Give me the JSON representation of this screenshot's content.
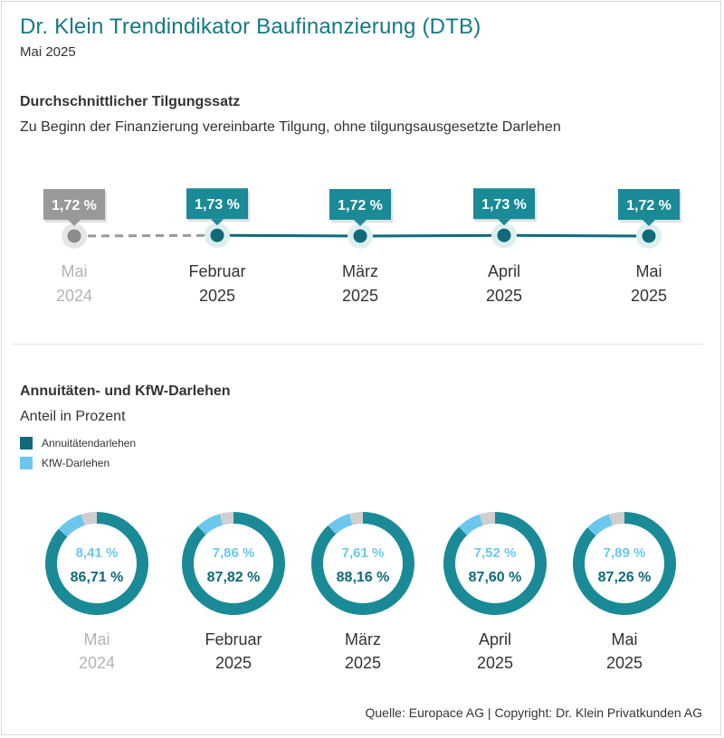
{
  "header": {
    "title": "Dr. Klein Trendindikator Baufinanzierung (DTB)",
    "date": "Mai 2025"
  },
  "colors": {
    "teal_dark": "#0f6b78",
    "teal": "#1a8a96",
    "light_blue": "#6cc7ee",
    "gray": "#999999",
    "gray_segment": "#cfcfcf",
    "halo": "#dcefef"
  },
  "section1": {
    "title": "Durchschnittlicher Tilgungssatz",
    "subtitle": "Zu Beginn der Finanzierung vereinbarte Tilgung, ohne tilgungsausgesetzte Darlehen"
  },
  "section2": {
    "title": "Annuitäten- und KfW-Darlehen",
    "subtitle": "Anteil in Prozent",
    "legend": [
      {
        "label": "Annuitätendarlehen",
        "color": "#0f6b78"
      },
      {
        "label": "KfW-Darlehen",
        "color": "#6cc7ee"
      }
    ]
  },
  "chart_data": [
    {
      "type": "line",
      "title": "Durchschnittlicher Tilgungssatz",
      "unit": "%",
      "categories": [
        {
          "month": "Mai",
          "year": "2024",
          "muted": true
        },
        {
          "month": "Februar",
          "year": "2025",
          "muted": false
        },
        {
          "month": "März",
          "year": "2025",
          "muted": false
        },
        {
          "month": "April",
          "year": "2025",
          "muted": false
        },
        {
          "month": "Mai",
          "year": "2025",
          "muted": false
        }
      ],
      "values": [
        1.72,
        1.73,
        1.72,
        1.73,
        1.72
      ],
      "labels": [
        "1,72 %",
        "1,73 %",
        "1,72 %",
        "1,73 %",
        "1,72 %"
      ]
    },
    {
      "type": "pie",
      "title": "Annuitäten- und KfW-Darlehen",
      "unit": "%",
      "categories": [
        {
          "month": "Mai",
          "year": "2024",
          "muted": true
        },
        {
          "month": "Februar",
          "year": "2025",
          "muted": false
        },
        {
          "month": "März",
          "year": "2025",
          "muted": false
        },
        {
          "month": "April",
          "year": "2025",
          "muted": false
        },
        {
          "month": "Mai",
          "year": "2025",
          "muted": false
        }
      ],
      "series": [
        {
          "name": "Annuitätendarlehen",
          "values": [
            86.71,
            87.82,
            88.16,
            87.6,
            87.26
          ],
          "labels": [
            "86,71 %",
            "87,82 %",
            "88,16 %",
            "87,60 %",
            "87,26 %"
          ]
        },
        {
          "name": "KfW-Darlehen",
          "values": [
            8.41,
            7.86,
            7.61,
            7.52,
            7.89
          ],
          "labels": [
            "8,41 %",
            "7,86 %",
            "7,61 %",
            "7,52 %",
            "7,89 %"
          ]
        }
      ]
    }
  ],
  "footer": {
    "source": "Quelle: Europace AG | Copyright: Dr. Klein Privatkunden AG"
  }
}
